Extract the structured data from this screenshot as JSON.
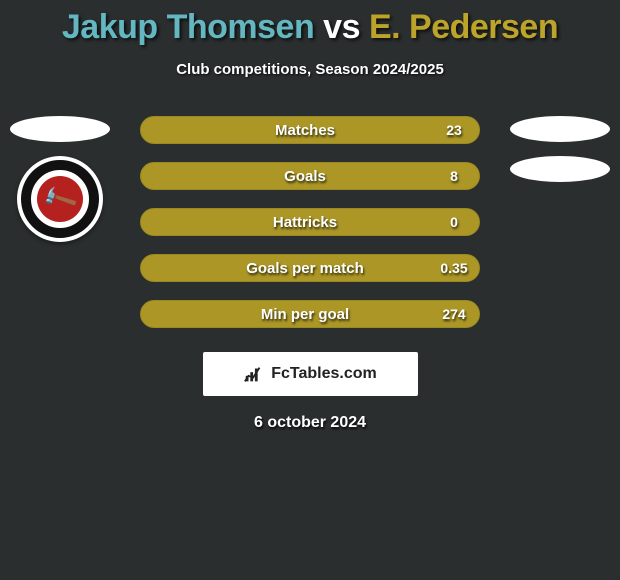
{
  "header": {
    "player1": "Jakup Thomsen",
    "vs": "vs",
    "player2": "E. Pedersen",
    "player1_color": "#64b6c1",
    "player2_color": "#bca42a",
    "subtitle": "Club competitions, Season 2024/2025"
  },
  "stats": [
    {
      "label": "Matches",
      "value": "23",
      "fill_pct": 100
    },
    {
      "label": "Goals",
      "value": "8",
      "fill_pct": 100
    },
    {
      "label": "Hattricks",
      "value": "0",
      "fill_pct": 100
    },
    {
      "label": "Goals per match",
      "value": "0.35",
      "fill_pct": 100
    },
    {
      "label": "Min per goal",
      "value": "274",
      "fill_pct": 100
    }
  ],
  "style": {
    "bar_bg": "#ab9626",
    "bar_border": "#9a8822",
    "background": "#2a2e2e"
  },
  "brand": {
    "text": "FcTables.com"
  },
  "date": "6 october 2024",
  "left_badge": {
    "name": "havnar-boltfelag",
    "ring": "#111111",
    "inner": "#b4211f"
  }
}
